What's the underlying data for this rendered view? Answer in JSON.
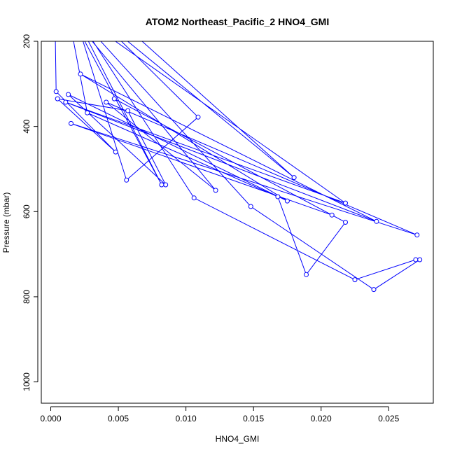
{
  "chart_data": {
    "type": "line",
    "title": "ATOM2 Northeast_Pacific_2 HNO4_GMI",
    "xlabel": "HNO4_GMI",
    "ylabel": "Pressure (mbar)",
    "xlim": [
      -0.0007,
      0.0283
    ],
    "ylim": [
      1050,
      200
    ],
    "y_reversed": true,
    "x_ticks": [
      0.0,
      0.005,
      0.01,
      0.015,
      0.02,
      0.025
    ],
    "x_tick_labels": [
      "0.000",
      "0.005",
      "0.010",
      "0.015",
      "0.020",
      "0.025"
    ],
    "y_ticks": [
      200,
      400,
      600,
      800,
      1000
    ],
    "y_tick_labels": [
      "200",
      "400",
      "600",
      "800",
      "1000"
    ],
    "series": [
      {
        "color": "#0000ff",
        "marker": "open-circle",
        "points": [
          {
            "x": 0.0003,
            "y": 110
          },
          {
            "x": 0.0004,
            "y": 318
          },
          {
            "x": 0.0048,
            "y": 460
          },
          {
            "x": 0.0005,
            "y": 335
          },
          {
            "x": 0.0057,
            "y": 363
          },
          {
            "x": 0.0085,
            "y": 537
          },
          {
            "x": 0.0013,
            "y": 325
          },
          {
            "x": 0.0175,
            "y": 575
          },
          {
            "x": 0.0022,
            "y": 277
          },
          {
            "x": 0.0241,
            "y": 623
          },
          {
            "x": 0.0011,
            "y": 343
          },
          {
            "x": 0.0218,
            "y": 580
          },
          {
            "x": 0.0012,
            "y": 120
          },
          {
            "x": 0.0027,
            "y": 368
          },
          {
            "x": 0.0168,
            "y": 565
          },
          {
            "x": 0.0189,
            "y": 748
          },
          {
            "x": 0.0218,
            "y": 625
          },
          {
            "x": 0.0047,
            "y": 335
          },
          {
            "x": 0.0208,
            "y": 608
          },
          {
            "x": 0.0015,
            "y": 393
          },
          {
            "x": 0.0271,
            "y": 655
          },
          {
            "x": 0.0041,
            "y": 343
          },
          {
            "x": 0.0122,
            "y": 550
          },
          {
            "x": 0.0015,
            "y": 140
          },
          {
            "x": 0.0082,
            "y": 537
          },
          {
            "x": 0.0015,
            "y": 120
          },
          {
            "x": 0.0106,
            "y": 568
          },
          {
            "x": 0.0225,
            "y": 760
          },
          {
            "x": 0.027,
            "y": 713
          },
          {
            "x": 0.0273,
            "y": 713
          },
          {
            "x": 0.0239,
            "y": 783
          },
          {
            "x": 0.0148,
            "y": 588
          },
          {
            "x": 0.0017,
            "y": 130
          },
          {
            "x": 0.0056,
            "y": 526
          },
          {
            "x": 0.0109,
            "y": 378
          },
          {
            "x": 0.003,
            "y": 130
          },
          {
            "x": 0.018,
            "y": 520
          },
          {
            "x": 0.005,
            "y": 150
          }
        ]
      }
    ]
  }
}
